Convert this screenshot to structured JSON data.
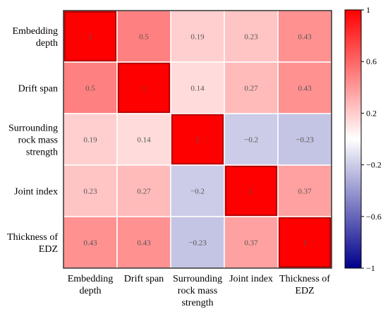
{
  "chart_data": {
    "type": "heatmap",
    "labels": [
      [
        "Embedding",
        "depth"
      ],
      [
        "Drift span"
      ],
      [
        "Surrounding",
        "rock mass",
        "strength"
      ],
      [
        "Joint index"
      ],
      [
        "Thickness of",
        "EDZ"
      ]
    ],
    "values": [
      [
        1,
        0.5,
        0.19,
        0.23,
        0.43
      ],
      [
        0.5,
        1,
        0.14,
        0.27,
        0.43
      ],
      [
        0.19,
        0.14,
        1,
        -0.2,
        -0.23
      ],
      [
        0.23,
        0.27,
        -0.2,
        1,
        0.37
      ],
      [
        0.43,
        0.43,
        -0.23,
        0.37,
        1
      ]
    ],
    "value_text": [
      [
        "1",
        "0.5",
        "0.19",
        "0.23",
        "0.43"
      ],
      [
        "0.5",
        "1",
        "0.14",
        "0.27",
        "0.43"
      ],
      [
        "0.19",
        "0.14",
        "1",
        "−0.2",
        "−0.23"
      ],
      [
        "0.23",
        "0.27",
        "−0.2",
        "1",
        "0.37"
      ],
      [
        "0.43",
        "0.43",
        "−0.23",
        "0.37",
        "1"
      ]
    ],
    "colorbar": {
      "min": -1,
      "max": 1,
      "ticks": [
        1,
        0.6,
        0.2,
        -0.2,
        -0.6,
        -1
      ],
      "tick_labels": [
        "1",
        "0.6",
        "0.2",
        "−0.2",
        "−0.6",
        "−1"
      ],
      "colors": {
        "negative_end": "#00008b",
        "zero": "#ffffff",
        "positive_end": "#ff0000"
      }
    },
    "title": "",
    "xlabel": "",
    "ylabel": "",
    "legend_position": "right"
  }
}
